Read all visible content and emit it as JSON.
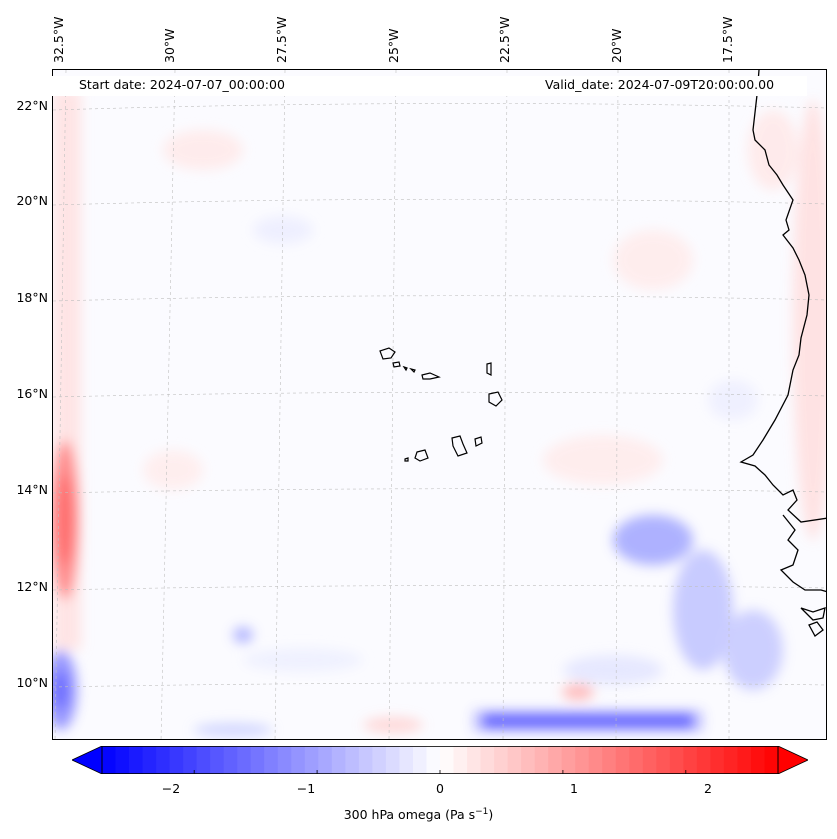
{
  "header": {
    "start_date": "Start date: 2024-07-07_00:00:00",
    "valid_date": "Valid_date: 2024-07-09T20:00:00.00"
  },
  "longitude_labels": [
    "32.5°W",
    "30°W",
    "27.5°W",
    "25°W",
    "22.5°W",
    "20°W",
    "17.5°W"
  ],
  "latitude_labels": [
    "22°N",
    "20°N",
    "18°N",
    "16°N",
    "14°N",
    "12°N",
    "10°N"
  ],
  "colorbar": {
    "title": "300 hPa omega (Pa s",
    "title_exponent": "−1",
    "title_suffix": ")",
    "tick_labels": [
      "−2",
      "−1",
      "0",
      "1",
      "2"
    ],
    "tick_values": [
      -2,
      -1,
      0,
      1,
      2
    ],
    "range": [
      -2.75,
      2.75
    ],
    "colormap": "bwr",
    "negative_color": "#0000ff",
    "positive_color": "#ff0000",
    "extend": "both"
  },
  "map": {
    "variable": "300 hPa omega",
    "units": "Pa s^-1",
    "gridlines": "dashed",
    "coastline_color": "#000000"
  }
}
